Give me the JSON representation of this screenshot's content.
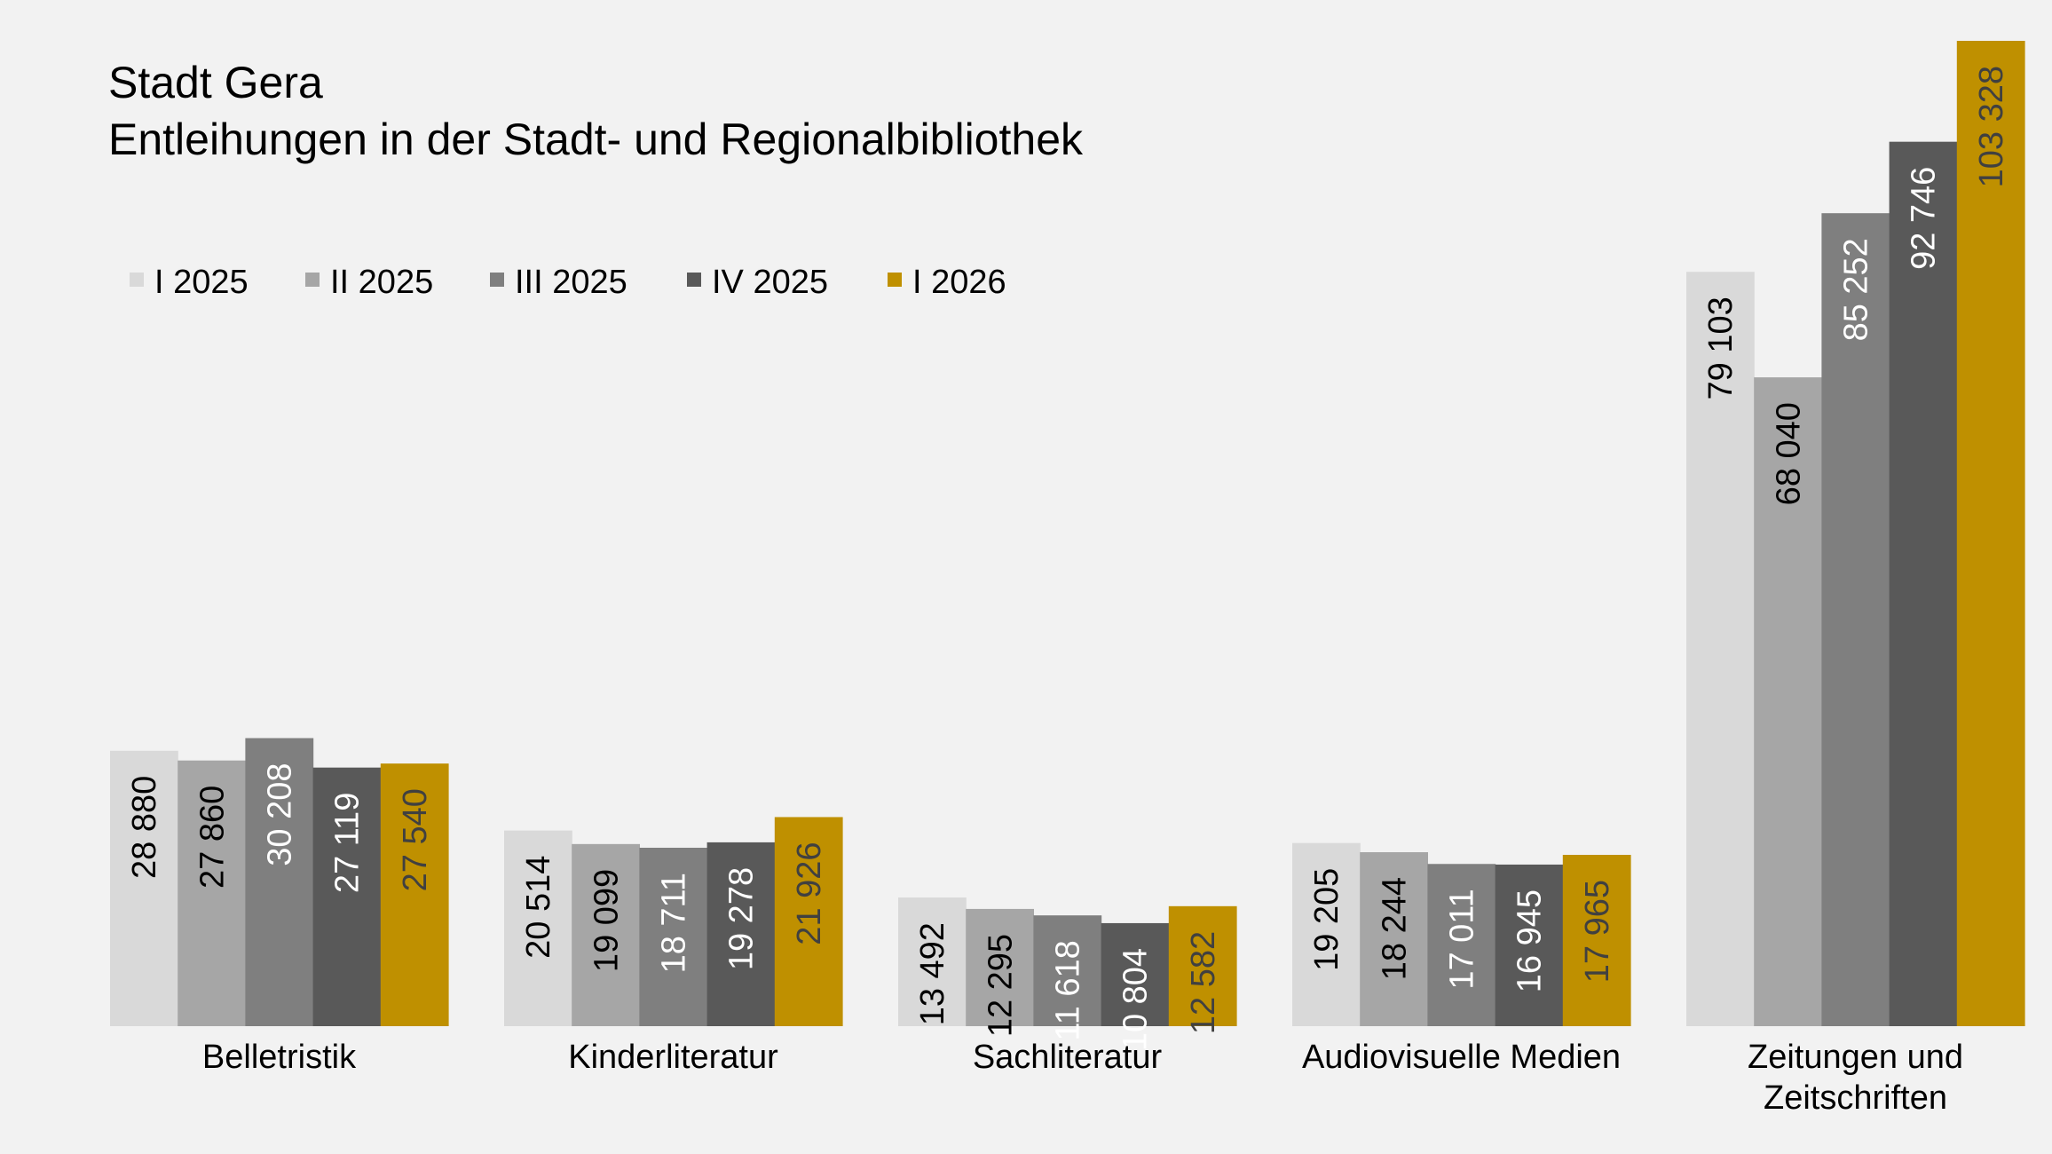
{
  "chart_data": {
    "type": "bar",
    "title": "Stadt Gera",
    "subtitle": "Entleihungen in der Stadt- und Regionalbibliothek",
    "categories": [
      [
        "Belletristik"
      ],
      [
        "Kinderliteratur"
      ],
      [
        "Sachliteratur"
      ],
      [
        "Audiovisuelle Medien"
      ],
      [
        "Zeitungen und",
        "Zeitschriften"
      ]
    ],
    "series": [
      {
        "name": "I 2025",
        "color": "#d9d9d9",
        "label_color": "#000000",
        "values": [
          28880,
          20514,
          13492,
          19205,
          79103
        ],
        "labels": [
          "28 880",
          "20 514",
          "13 492",
          "19 205",
          "79 103"
        ]
      },
      {
        "name": "II 2025",
        "color": "#a6a6a6",
        "label_color": "#000000",
        "values": [
          27860,
          19099,
          12295,
          18244,
          68040
        ],
        "labels": [
          "27 860",
          "19 099",
          "12 295",
          "18 244",
          "68 040"
        ]
      },
      {
        "name": "III 2025",
        "color": "#7f7f7f",
        "label_color": "#ffffff",
        "values": [
          30208,
          18711,
          11618,
          17011,
          85252
        ],
        "labels": [
          "30 208",
          "18 711",
          "11 618",
          "17 011",
          "85 252"
        ]
      },
      {
        "name": "IV 2025",
        "color": "#595959",
        "label_color": "#ffffff",
        "values": [
          27119,
          19278,
          10804,
          16945,
          92746
        ],
        "labels": [
          "27 119",
          "19 278",
          "10 804",
          "16 945",
          "92 746"
        ]
      },
      {
        "name": "I 2026",
        "color": "#bf9000",
        "label_color": "#404040",
        "values": [
          27540,
          21926,
          12582,
          17965,
          103328
        ],
        "labels": [
          "27 540",
          "21 926",
          "12 582",
          "17 965",
          "103 328"
        ]
      }
    ],
    "ylim": [
      0,
      103328
    ],
    "legend_position": "top-left",
    "grid": false
  }
}
